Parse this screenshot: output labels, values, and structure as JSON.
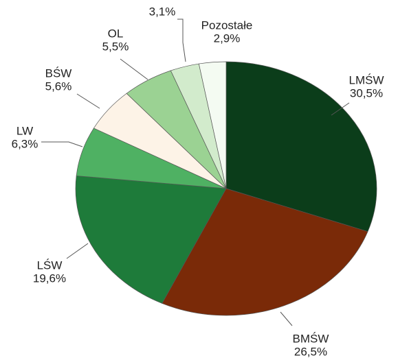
{
  "chart_data": {
    "type": "pie",
    "categories": [
      "LMŚW",
      "BMŚW",
      "LŚW",
      "LW",
      "BŚW",
      "OL",
      null,
      "Pozostałe"
    ],
    "values": [
      30.5,
      26.5,
      19.6,
      6.3,
      5.6,
      5.5,
      3.1,
      2.9
    ],
    "value_labels": [
      "30,5%",
      "26,5%",
      "19,6%",
      "6,3%",
      "5,6%",
      "5,5%",
      "3,1%",
      "2,9%"
    ],
    "colors": [
      "#0b3d1a",
      "#7a2a08",
      "#1e7b3a",
      "#4fb163",
      "#fdf3e7",
      "#9bd293",
      "#d2ebcc",
      "#f4fbf2"
    ]
  }
}
